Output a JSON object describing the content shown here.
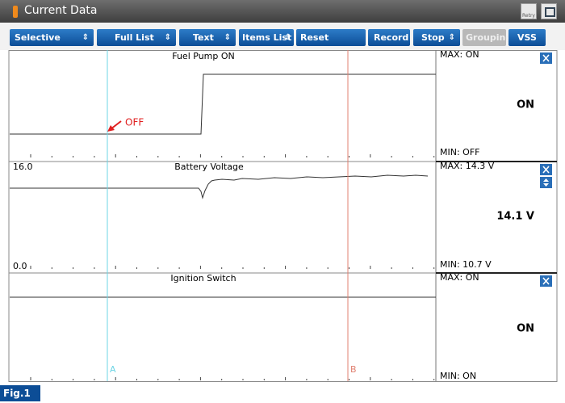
{
  "window": {
    "title": "Current Data",
    "retry": "Retry"
  },
  "toolbar": [
    "Selective Display",
    "Full List",
    "Text",
    "Items List",
    "Reset Min.Max",
    "Record",
    "Stop",
    "Grouping",
    "VSS"
  ],
  "graphs": [
    {
      "title": "Fuel Pump ON",
      "max": "MAX: ON",
      "current": "ON",
      "min": "MIN: OFF"
    },
    {
      "title": "Battery Voltage",
      "scale_top": "16.0",
      "scale_bottom": "0.0",
      "max": "MAX:  14.3 V",
      "current": "14.1 V",
      "min": "MIN:  10.7 V"
    },
    {
      "title": "Ignition Switch",
      "max": "MAX: ON",
      "current": "ON",
      "min": "MIN: ON"
    }
  ],
  "annotation": "OFF",
  "cursors": [
    "A",
    "B"
  ],
  "figure_label": "Fig.1"
}
